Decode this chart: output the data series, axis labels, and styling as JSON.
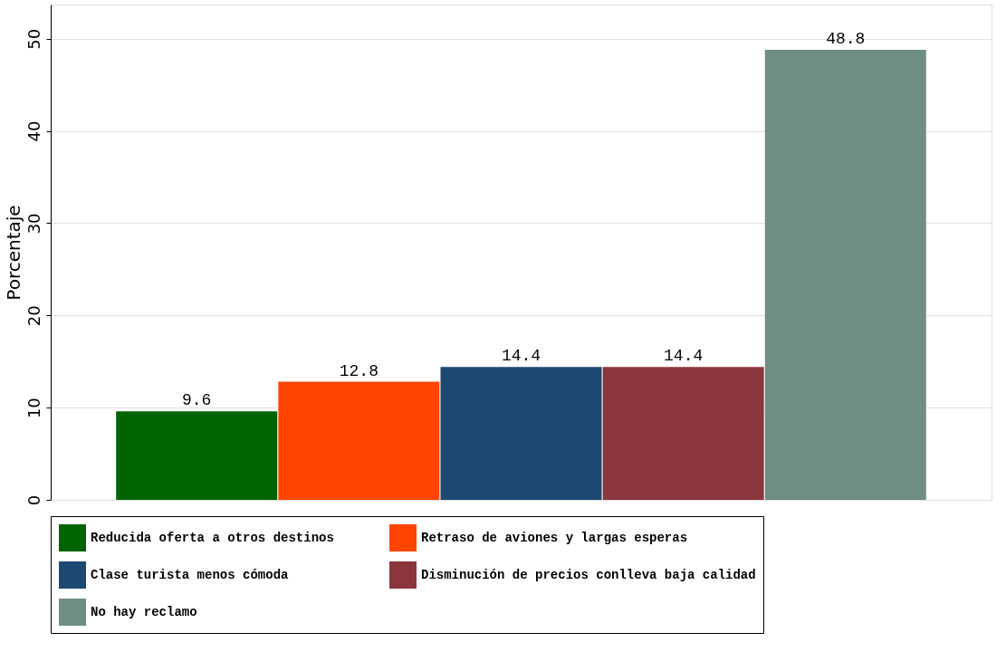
{
  "chart_data": {
    "type": "bar",
    "ylabel": "Porcentaje",
    "categories": [
      null
    ],
    "series": [
      {
        "name": "Reducida oferta a otros destinos",
        "color": "#006400",
        "values": [
          9.6
        ]
      },
      {
        "name": "Retraso de aviones y largas esperas",
        "color": "#ff4500",
        "values": [
          12.8
        ]
      },
      {
        "name": "Clase turista menos cómoda",
        "color": "#1c4871",
        "values": [
          14.4
        ]
      },
      {
        "name": "Disminución de precios conlleva baja calidad",
        "color": "#8b353e",
        "values": [
          14.4
        ]
      },
      {
        "name": "No hay reclamo",
        "color": "#6e8e84",
        "values": [
          48.8
        ]
      }
    ],
    "ylim": [
      0,
      53.7
    ],
    "yticks": [
      0,
      10,
      20,
      30,
      40,
      50
    ],
    "grid": "y",
    "legend": "bottom",
    "data_labels": true
  }
}
